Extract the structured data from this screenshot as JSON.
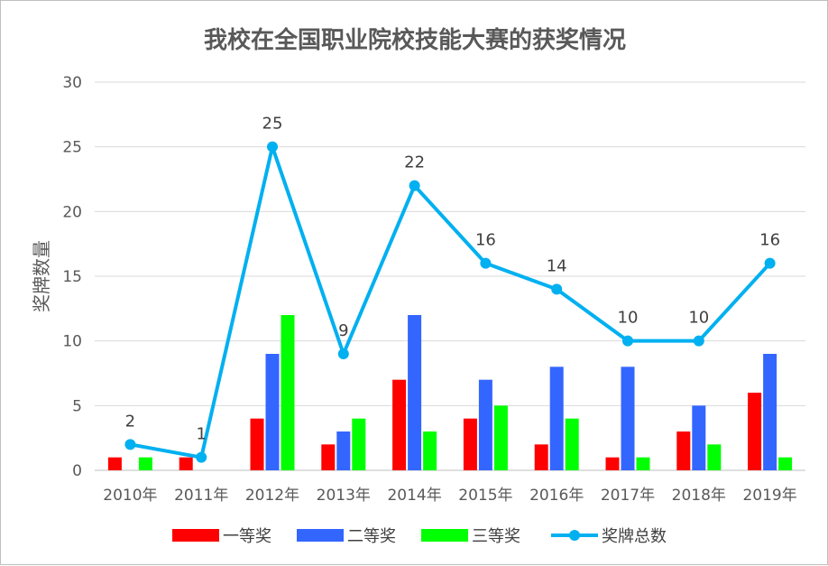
{
  "chart_data": {
    "type": "bar",
    "title": "我校在全国职业院校技能大赛的获奖情况",
    "ylabel": "奖牌数量",
    "xlabel": "",
    "ylim": [
      0,
      30
    ],
    "yticks": [
      0,
      5,
      10,
      15,
      20,
      25,
      30
    ],
    "categories": [
      "2010年",
      "2011年",
      "2012年",
      "2013年",
      "2014年",
      "2015年",
      "2016年",
      "2017年",
      "2018年",
      "2019年"
    ],
    "series": [
      {
        "name": "一等奖",
        "type": "bar",
        "color": "#ff0000",
        "values": [
          1,
          1,
          4,
          2,
          7,
          4,
          2,
          1,
          3,
          6
        ]
      },
      {
        "name": "二等奖",
        "type": "bar",
        "color": "#3366ff",
        "values": [
          0,
          0,
          9,
          3,
          12,
          7,
          8,
          8,
          5,
          9
        ]
      },
      {
        "name": "三等奖",
        "type": "bar",
        "color": "#00ff00",
        "values": [
          1,
          0,
          12,
          4,
          3,
          5,
          4,
          1,
          2,
          1
        ]
      },
      {
        "name": "奖牌总数",
        "type": "line",
        "color": "#00b0f0",
        "values": [
          2,
          1,
          25,
          9,
          22,
          16,
          14,
          10,
          10,
          16
        ]
      }
    ],
    "data_labels": [
      "2",
      "1",
      "25",
      "9",
      "22",
      "16",
      "14",
      "10",
      "10",
      "16"
    ],
    "grid": true,
    "legend_position": "bottom"
  }
}
